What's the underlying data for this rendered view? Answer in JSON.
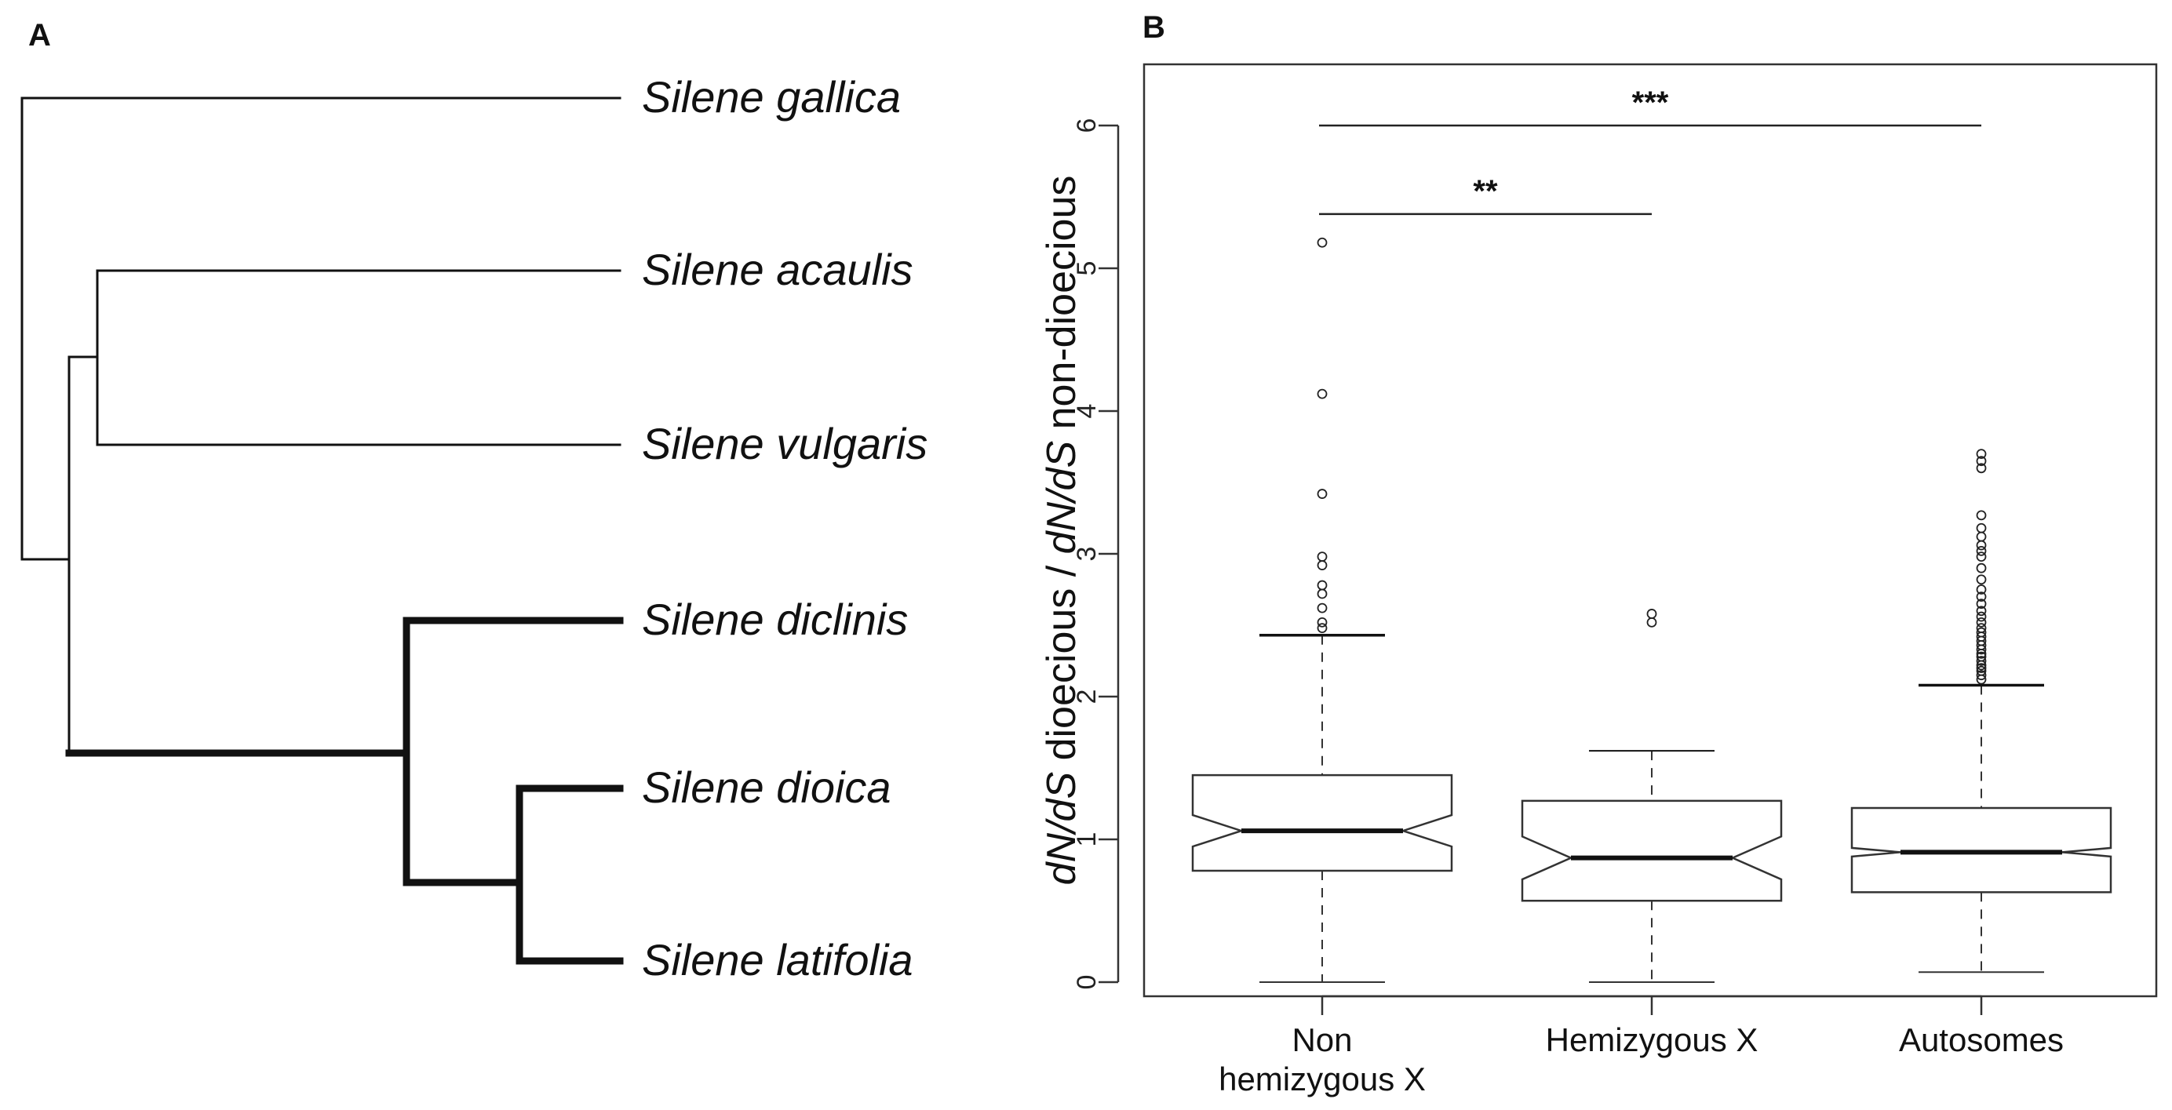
{
  "figure": {
    "panel_a_label": "A",
    "panel_b_label": "B"
  },
  "tree": {
    "species": [
      {
        "genus": "Silene",
        "epithet": "gallica"
      },
      {
        "genus": "Silene",
        "epithet": "acaulis"
      },
      {
        "genus": "Silene",
        "epithet": "vulgaris"
      },
      {
        "genus": "Silene",
        "epithet": "diclinis"
      },
      {
        "genus": "Silene",
        "epithet": "dioica"
      },
      {
        "genus": "Silene",
        "epithet": "latifolia"
      }
    ],
    "bold_clade": [
      "Silene diclinis",
      "Silene dioica",
      "Silene latifolia"
    ]
  },
  "chart_data": {
    "type": "boxplot",
    "notched": true,
    "ylabel_parts": [
      {
        "text": "dN/dS",
        "italic": true
      },
      {
        "text": " dioecious / ",
        "italic": false
      },
      {
        "text": "dN/dS",
        "italic": true
      },
      {
        "text": " non-dioecious",
        "italic": false
      }
    ],
    "ylim": [
      -0.1,
      6.3
    ],
    "yticks": [
      0,
      1,
      2,
      3,
      4,
      5,
      6
    ],
    "categories": [
      {
        "label_lines": [
          "Non",
          "hemizygous X"
        ]
      },
      {
        "label_lines": [
          "Hemizygous X"
        ]
      },
      {
        "label_lines": [
          "Autosomes"
        ]
      }
    ],
    "boxes": [
      {
        "category": "Non hemizygous X",
        "whisker_low": 0.0,
        "q1": 0.78,
        "notch_low": 0.95,
        "median": 1.06,
        "notch_high": 1.17,
        "q3": 1.45,
        "whisker_high": 2.43,
        "outliers": [
          2.48,
          2.52,
          2.62,
          2.72,
          2.78,
          2.92,
          2.98,
          3.42,
          4.12,
          5.18
        ]
      },
      {
        "category": "Hemizygous X",
        "whisker_low": 0.0,
        "q1": 0.57,
        "notch_low": 0.72,
        "median": 0.87,
        "notch_high": 1.02,
        "q3": 1.27,
        "whisker_high": 1.62,
        "outliers": [
          2.52,
          2.58
        ]
      },
      {
        "category": "Autosomes",
        "whisker_low": 0.07,
        "q1": 0.63,
        "notch_low": 0.88,
        "median": 0.91,
        "notch_high": 0.94,
        "q3": 1.22,
        "whisker_high": 2.08,
        "outliers": [
          2.12,
          2.15,
          2.18,
          2.2,
          2.22,
          2.25,
          2.28,
          2.3,
          2.33,
          2.36,
          2.39,
          2.42,
          2.45,
          2.48,
          2.52,
          2.56,
          2.6,
          2.65,
          2.7,
          2.75,
          2.82,
          2.9,
          2.98,
          3.02,
          3.06,
          3.12,
          3.18,
          3.27,
          3.6,
          3.65,
          3.7
        ]
      }
    ],
    "significance": [
      {
        "from": 0,
        "to": 2,
        "y": 6.0,
        "label": "***"
      },
      {
        "from": 0,
        "to": 1,
        "y": 5.38,
        "label": "**"
      }
    ]
  }
}
